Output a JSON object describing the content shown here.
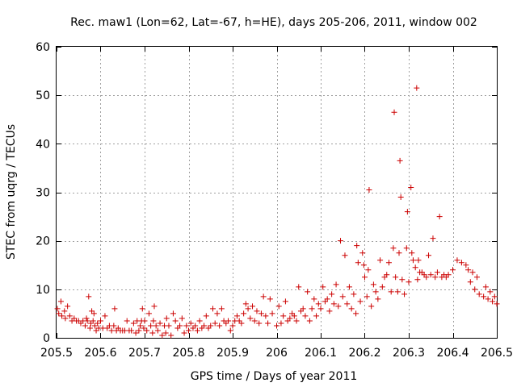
{
  "chart_data": {
    "type": "scatter",
    "title": "Rec. maw1 (Lon=62, Lat=-67, h=HE), days 205-206, 2011, window 002",
    "xlabel": "GPS time / Days of year 2011",
    "ylabel": "STEC from uqrg / TECUs",
    "xlim": [
      205.5,
      206.5
    ],
    "ylim": [
      0,
      60
    ],
    "xticks": [
      205.5,
      205.6,
      205.7,
      205.8,
      205.9,
      206.0,
      206.1,
      206.2,
      206.3,
      206.4,
      206.5
    ],
    "xtick_labels": [
      "205.5",
      "205.6",
      "205.7",
      "205.8",
      "205.9",
      "206",
      "206.1",
      "206.2",
      "206.3",
      "206.4",
      "206.5"
    ],
    "yticks": [
      0,
      10,
      20,
      30,
      40,
      50,
      60
    ],
    "ytick_labels": [
      "0",
      "10",
      "20",
      "30",
      "40",
      "50",
      "60"
    ],
    "grid": true,
    "marker": "plus",
    "color": "#cc0000",
    "series": [
      {
        "name": "STEC",
        "points": [
          [
            205.502,
            6.0
          ],
          [
            205.505,
            5.0
          ],
          [
            205.51,
            7.5
          ],
          [
            205.512,
            4.5
          ],
          [
            205.518,
            5.5
          ],
          [
            205.52,
            4.0
          ],
          [
            205.525,
            6.5
          ],
          [
            205.53,
            4.5
          ],
          [
            205.535,
            3.5
          ],
          [
            205.54,
            4.0
          ],
          [
            205.545,
            3.5
          ],
          [
            205.55,
            3.5
          ],
          [
            205.555,
            3.0
          ],
          [
            205.56,
            3.5
          ],
          [
            205.565,
            2.5
          ],
          [
            205.568,
            4.0
          ],
          [
            205.57,
            3.5
          ],
          [
            205.573,
            8.5
          ],
          [
            205.576,
            2.0
          ],
          [
            205.578,
            3.0
          ],
          [
            205.58,
            5.5
          ],
          [
            205.583,
            3.5
          ],
          [
            205.585,
            5.0
          ],
          [
            205.587,
            2.5
          ],
          [
            205.59,
            1.5
          ],
          [
            205.593,
            3.0
          ],
          [
            205.596,
            2.0
          ],
          [
            205.6,
            3.5
          ],
          [
            205.605,
            2.0
          ],
          [
            205.61,
            4.5
          ],
          [
            205.615,
            2.0
          ],
          [
            205.62,
            2.5
          ],
          [
            205.625,
            1.5
          ],
          [
            205.63,
            2.5
          ],
          [
            205.632,
            6.0
          ],
          [
            205.636,
            1.5
          ],
          [
            205.64,
            2.0
          ],
          [
            205.645,
            1.5
          ],
          [
            205.65,
            1.5
          ],
          [
            205.655,
            1.5
          ],
          [
            205.66,
            3.5
          ],
          [
            205.665,
            1.5
          ],
          [
            205.67,
            1.5
          ],
          [
            205.675,
            3.0
          ],
          [
            205.68,
            1.0
          ],
          [
            205.683,
            3.5
          ],
          [
            205.687,
            1.5
          ],
          [
            205.69,
            2.5
          ],
          [
            205.693,
            3.5
          ],
          [
            205.695,
            6.0
          ],
          [
            205.698,
            2.0
          ],
          [
            205.7,
            3.5
          ],
          [
            205.705,
            1.5
          ],
          [
            205.71,
            5.0
          ],
          [
            205.714,
            2.5
          ],
          [
            205.718,
            1.0
          ],
          [
            205.72,
            3.5
          ],
          [
            205.722,
            6.5
          ],
          [
            205.726,
            2.5
          ],
          [
            205.73,
            1.5
          ],
          [
            205.735,
            3.0
          ],
          [
            205.74,
            0.5
          ],
          [
            205.745,
            2.5
          ],
          [
            205.748,
            1.0
          ],
          [
            205.75,
            4.0
          ],
          [
            205.755,
            2.5
          ],
          [
            205.76,
            0.5
          ],
          [
            205.765,
            5.0
          ],
          [
            205.77,
            3.5
          ],
          [
            205.775,
            2.0
          ],
          [
            205.78,
            2.5
          ],
          [
            205.785,
            4.0
          ],
          [
            205.79,
            1.0
          ],
          [
            205.795,
            2.5
          ],
          [
            205.8,
            1.5
          ],
          [
            205.805,
            3.0
          ],
          [
            205.81,
            2.0
          ],
          [
            205.815,
            2.5
          ],
          [
            205.82,
            1.5
          ],
          [
            205.825,
            3.5
          ],
          [
            205.83,
            2.0
          ],
          [
            205.835,
            2.5
          ],
          [
            205.84,
            4.5
          ],
          [
            205.845,
            2.0
          ],
          [
            205.85,
            2.5
          ],
          [
            205.855,
            6.0
          ],
          [
            205.86,
            3.0
          ],
          [
            205.865,
            5.0
          ],
          [
            205.87,
            2.5
          ],
          [
            205.875,
            6.0
          ],
          [
            205.88,
            3.5
          ],
          [
            205.885,
            3.0
          ],
          [
            205.89,
            3.5
          ],
          [
            205.895,
            1.5
          ],
          [
            205.9,
            2.5
          ],
          [
            205.905,
            3.5
          ],
          [
            205.91,
            4.5
          ],
          [
            205.915,
            3.5
          ],
          [
            205.92,
            3.0
          ],
          [
            205.925,
            5.0
          ],
          [
            205.93,
            7.0
          ],
          [
            205.935,
            6.0
          ],
          [
            205.94,
            4.0
          ],
          [
            205.945,
            6.5
          ],
          [
            205.95,
            3.5
          ],
          [
            205.955,
            5.5
          ],
          [
            205.96,
            3.0
          ],
          [
            205.965,
            5.0
          ],
          [
            205.97,
            8.5
          ],
          [
            205.975,
            4.5
          ],
          [
            205.98,
            3.0
          ],
          [
            205.985,
            8.0
          ],
          [
            205.99,
            5.0
          ],
          [
            206.0,
            2.5
          ],
          [
            206.005,
            6.5
          ],
          [
            206.01,
            3.0
          ],
          [
            206.015,
            4.5
          ],
          [
            206.02,
            7.5
          ],
          [
            206.025,
            3.5
          ],
          [
            206.03,
            4.0
          ],
          [
            206.035,
            5.0
          ],
          [
            206.04,
            4.5
          ],
          [
            206.045,
            3.5
          ],
          [
            206.05,
            10.5
          ],
          [
            206.055,
            5.5
          ],
          [
            206.06,
            6.0
          ],
          [
            206.065,
            4.5
          ],
          [
            206.07,
            9.5
          ],
          [
            206.075,
            3.5
          ],
          [
            206.08,
            6.0
          ],
          [
            206.085,
            8.0
          ],
          [
            206.09,
            4.5
          ],
          [
            206.095,
            7.0
          ],
          [
            206.1,
            6.0
          ],
          [
            206.105,
            10.5
          ],
          [
            206.11,
            7.5
          ],
          [
            206.115,
            8.0
          ],
          [
            206.12,
            5.5
          ],
          [
            206.125,
            9.0
          ],
          [
            206.13,
            7.0
          ],
          [
            206.135,
            11.0
          ],
          [
            206.14,
            6.5
          ],
          [
            206.145,
            20.0
          ],
          [
            206.15,
            8.5
          ],
          [
            206.155,
            17.0
          ],
          [
            206.16,
            7.0
          ],
          [
            206.165,
            10.5
          ],
          [
            206.17,
            6.0
          ],
          [
            206.175,
            9.0
          ],
          [
            206.18,
            5.0
          ],
          [
            206.182,
            19.0
          ],
          [
            206.185,
            15.5
          ],
          [
            206.19,
            7.5
          ],
          [
            206.195,
            17.5
          ],
          [
            206.198,
            15.0
          ],
          [
            206.2,
            12.5
          ],
          [
            206.205,
            8.5
          ],
          [
            206.208,
            14.0
          ],
          [
            206.21,
            30.5
          ],
          [
            206.215,
            6.5
          ],
          [
            206.22,
            11.0
          ],
          [
            206.225,
            9.5
          ],
          [
            206.23,
            8.0
          ],
          [
            206.235,
            16.0
          ],
          [
            206.24,
            10.5
          ],
          [
            206.245,
            12.5
          ],
          [
            206.25,
            13.0
          ],
          [
            206.255,
            15.5
          ],
          [
            206.26,
            9.5
          ],
          [
            206.265,
            18.5
          ],
          [
            206.267,
            46.5
          ],
          [
            206.27,
            12.5
          ],
          [
            206.275,
            9.5
          ],
          [
            206.278,
            17.5
          ],
          [
            206.28,
            36.5
          ],
          [
            206.282,
            29.0
          ],
          [
            206.285,
            12.0
          ],
          [
            206.29,
            9.0
          ],
          [
            206.295,
            18.5
          ],
          [
            206.297,
            26.0
          ],
          [
            206.3,
            11.5
          ],
          [
            206.305,
            31.0
          ],
          [
            206.307,
            17.5
          ],
          [
            206.31,
            16.0
          ],
          [
            206.315,
            14.5
          ],
          [
            206.318,
            51.5
          ],
          [
            206.32,
            12.0
          ],
          [
            206.322,
            16.0
          ],
          [
            206.325,
            13.5
          ],
          [
            206.33,
            13.5
          ],
          [
            206.335,
            13.0
          ],
          [
            206.34,
            12.5
          ],
          [
            206.345,
            17.0
          ],
          [
            206.35,
            13.0
          ],
          [
            206.355,
            20.5
          ],
          [
            206.36,
            12.5
          ],
          [
            206.365,
            13.5
          ],
          [
            206.37,
            25.0
          ],
          [
            206.375,
            12.5
          ],
          [
            206.38,
            13.0
          ],
          [
            206.385,
            12.5
          ],
          [
            206.39,
            13.0
          ],
          [
            206.4,
            14.0
          ],
          [
            206.41,
            16.0
          ],
          [
            206.42,
            15.5
          ],
          [
            206.43,
            15.0
          ],
          [
            206.44,
            11.5
          ],
          [
            206.45,
            10.0
          ],
          [
            206.46,
            9.0
          ],
          [
            206.47,
            8.5
          ],
          [
            206.48,
            8.0
          ],
          [
            206.49,
            7.5
          ],
          [
            206.5,
            7.0
          ],
          [
            206.485,
            9.5
          ],
          [
            206.495,
            8.5
          ],
          [
            206.475,
            10.5
          ],
          [
            206.455,
            12.5
          ],
          [
            206.445,
            13.5
          ],
          [
            206.435,
            14.0
          ]
        ]
      }
    ]
  }
}
